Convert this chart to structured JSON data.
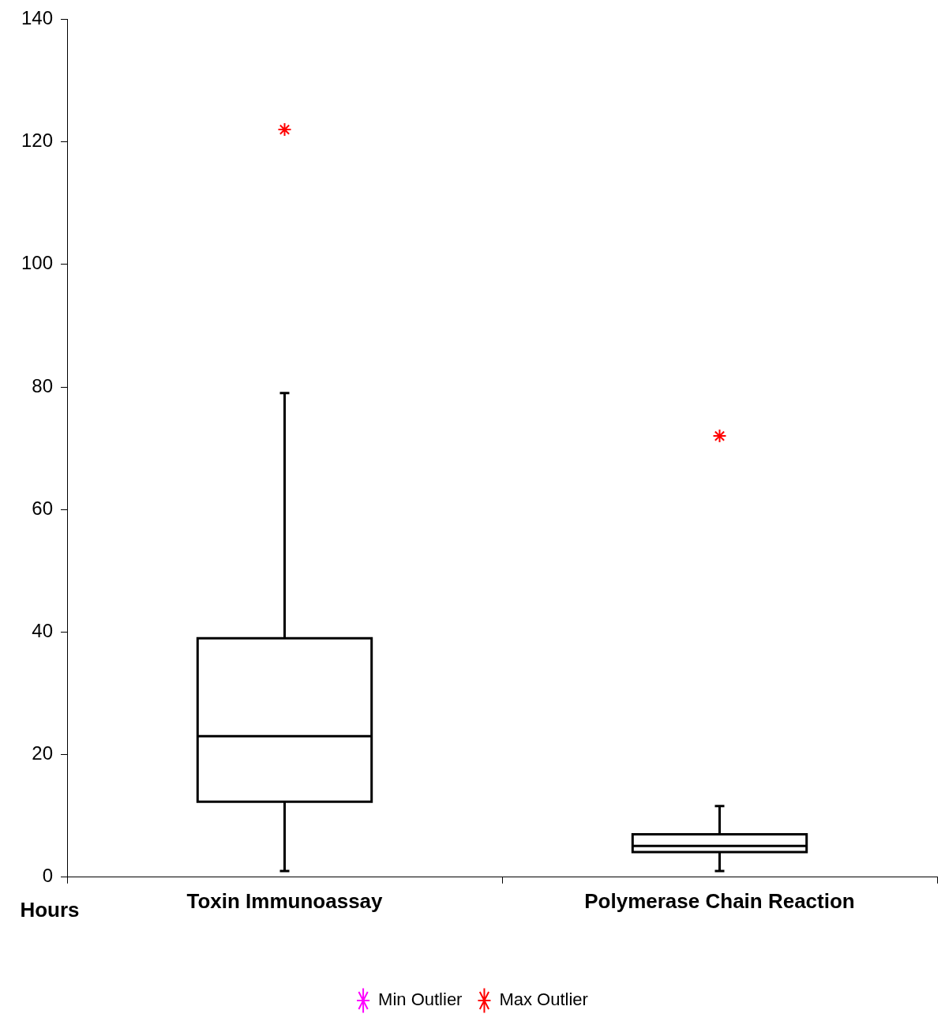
{
  "chart_data": {
    "type": "box",
    "ylabel": "Hours",
    "categories": [
      "Toxin Immunoassay",
      "Polymerase Chain Reaction"
    ],
    "boxes": [
      {
        "low": 1,
        "q1": 12.3,
        "median": 23,
        "q3": 39,
        "high": 79
      },
      {
        "low": 1,
        "q1": 4.1,
        "median": 5.1,
        "q3": 7,
        "high": 11.6
      }
    ],
    "series": [
      {
        "name": "Min Outlier",
        "type": "scatter",
        "color": "#ff00ff",
        "x": [
          "Toxin Immunoassay",
          "Polymerase Chain Reaction"
        ],
        "values": [
          null,
          null
        ]
      },
      {
        "name": "Max Outlier",
        "type": "scatter",
        "color": "#ff0000",
        "x": [
          "Toxin Immunoassay",
          "Polymerase Chain Reaction"
        ],
        "values": [
          122,
          72
        ]
      }
    ],
    "ylim": [
      0,
      140
    ],
    "yticks": [
      0,
      20,
      40,
      60,
      80,
      100,
      120,
      140
    ],
    "grid": false,
    "legend": "bottom",
    "marker": "cross"
  }
}
